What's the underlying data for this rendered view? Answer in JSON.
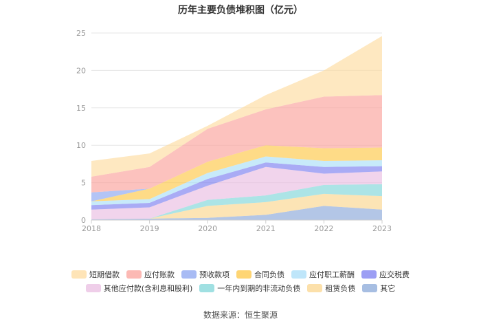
{
  "chart_data": {
    "type": "area",
    "stacked": true,
    "title": "历年主要负债堆积图（亿元）",
    "xlabel": "",
    "ylabel": "",
    "categories": [
      "2018",
      "2019",
      "2020",
      "2021",
      "2022",
      "2023"
    ],
    "ylim": [
      0,
      25
    ],
    "yticks": [
      "0",
      "5",
      "10",
      "15",
      "20",
      "25"
    ],
    "series": [
      {
        "name": "其它",
        "color": "#8aa8d8",
        "values": [
          0.1,
          0.2,
          0.3,
          0.7,
          1.9,
          1.4
        ]
      },
      {
        "name": "租赁负债",
        "color": "#fbd58e",
        "values": [
          0,
          0,
          1.6,
          1.7,
          1.6,
          1.8
        ]
      },
      {
        "name": "一年内到期的非流动负债",
        "color": "#80d6d8",
        "values": [
          0,
          0,
          0.8,
          0.9,
          1.2,
          1.6
        ]
      },
      {
        "name": "其他应付款(含利息和股利)",
        "color": "#e9bde2",
        "values": [
          1.3,
          1.5,
          1.9,
          3.8,
          1.5,
          1.7
        ]
      },
      {
        "name": "应交税费",
        "color": "#7b7ef0",
        "values": [
          0.6,
          0.6,
          0.9,
          0.6,
          0.9,
          0.7
        ]
      },
      {
        "name": "应付职工薪酬",
        "color": "#a9def8",
        "values": [
          0.5,
          0.5,
          0.8,
          0.8,
          0.8,
          0.8
        ]
      },
      {
        "name": "合同负债",
        "color": "#fdc746",
        "values": [
          0,
          1.4,
          1.5,
          1.5,
          1.7,
          1.7
        ]
      },
      {
        "name": "预收款项",
        "color": "#8ba4f0",
        "values": [
          1.2,
          0,
          0,
          0,
          0,
          0
        ]
      },
      {
        "name": "应付账款",
        "color": "#fba19b",
        "values": [
          2.1,
          2.9,
          4.4,
          4.8,
          6.9,
          7.0
        ]
      },
      {
        "name": "短期借款",
        "color": "#fddb9f",
        "values": [
          2.1,
          1.8,
          0.4,
          1.9,
          3.5,
          7.9
        ]
      }
    ],
    "legend": {
      "position": "bottom",
      "rows": [
        [
          "短期借款",
          "应付账款",
          "预收款项",
          "合同负债",
          "应付职工薪酬",
          "应交税费"
        ],
        [
          "其他应付款(含利息和股利)",
          "一年内到期的非流动负债",
          "租赁负债",
          "其它"
        ]
      ]
    }
  },
  "source": "数据来源：恒生聚源"
}
